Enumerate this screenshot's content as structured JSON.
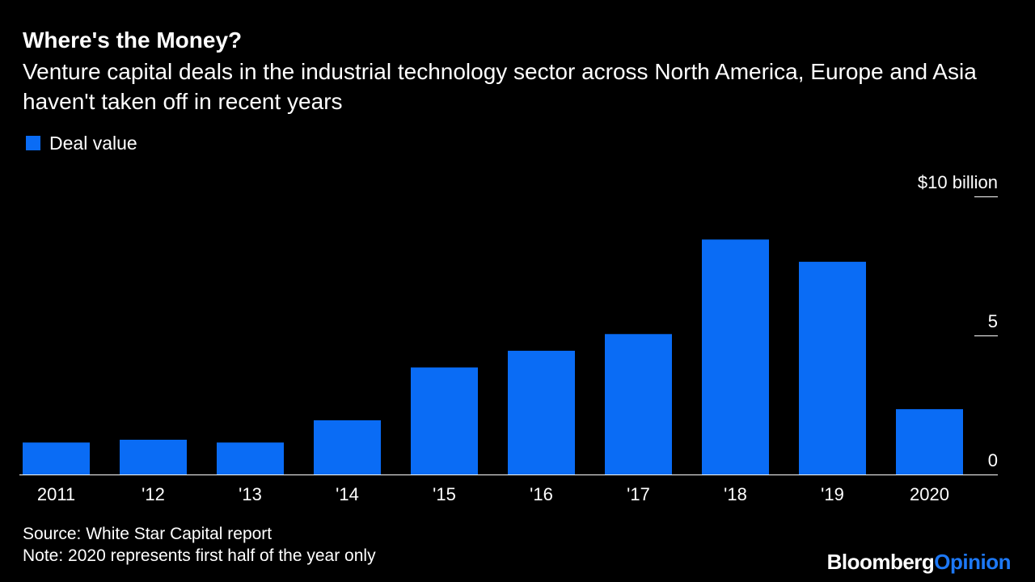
{
  "header": {
    "title": "Where's the Money?",
    "subtitle": "Venture capital deals in the industrial technology sector across North America, Europe and Asia haven't taken off in recent years"
  },
  "legend": {
    "label": "Deal value"
  },
  "colors": {
    "background": "#000000",
    "bar": "#0a6cf5",
    "text": "#ffffff",
    "brand_accent": "#1d78f5"
  },
  "chart_data": {
    "type": "bar",
    "categories": [
      "2011",
      "'12",
      "'13",
      "'14",
      "'15",
      "'16",
      "'17",
      "'18",
      "'19",
      "2020"
    ],
    "series": [
      {
        "name": "Deal value",
        "values": [
          1.15,
          1.25,
          1.15,
          1.95,
          3.85,
          4.45,
          5.05,
          8.45,
          7.65,
          2.35
        ]
      }
    ],
    "y_ticks": [
      {
        "value": 0,
        "label": "0"
      },
      {
        "value": 5,
        "label": "5"
      },
      {
        "value": 10,
        "label": "$10 billion"
      }
    ],
    "ylim": [
      0,
      10
    ],
    "grid": false,
    "legend_position": "top-left"
  },
  "footer": {
    "source": "Source: White Star Capital report",
    "note": "Note: 2020 represents first half of the year only",
    "brand_primary": "Bloomberg",
    "brand_secondary": "Opinion"
  }
}
